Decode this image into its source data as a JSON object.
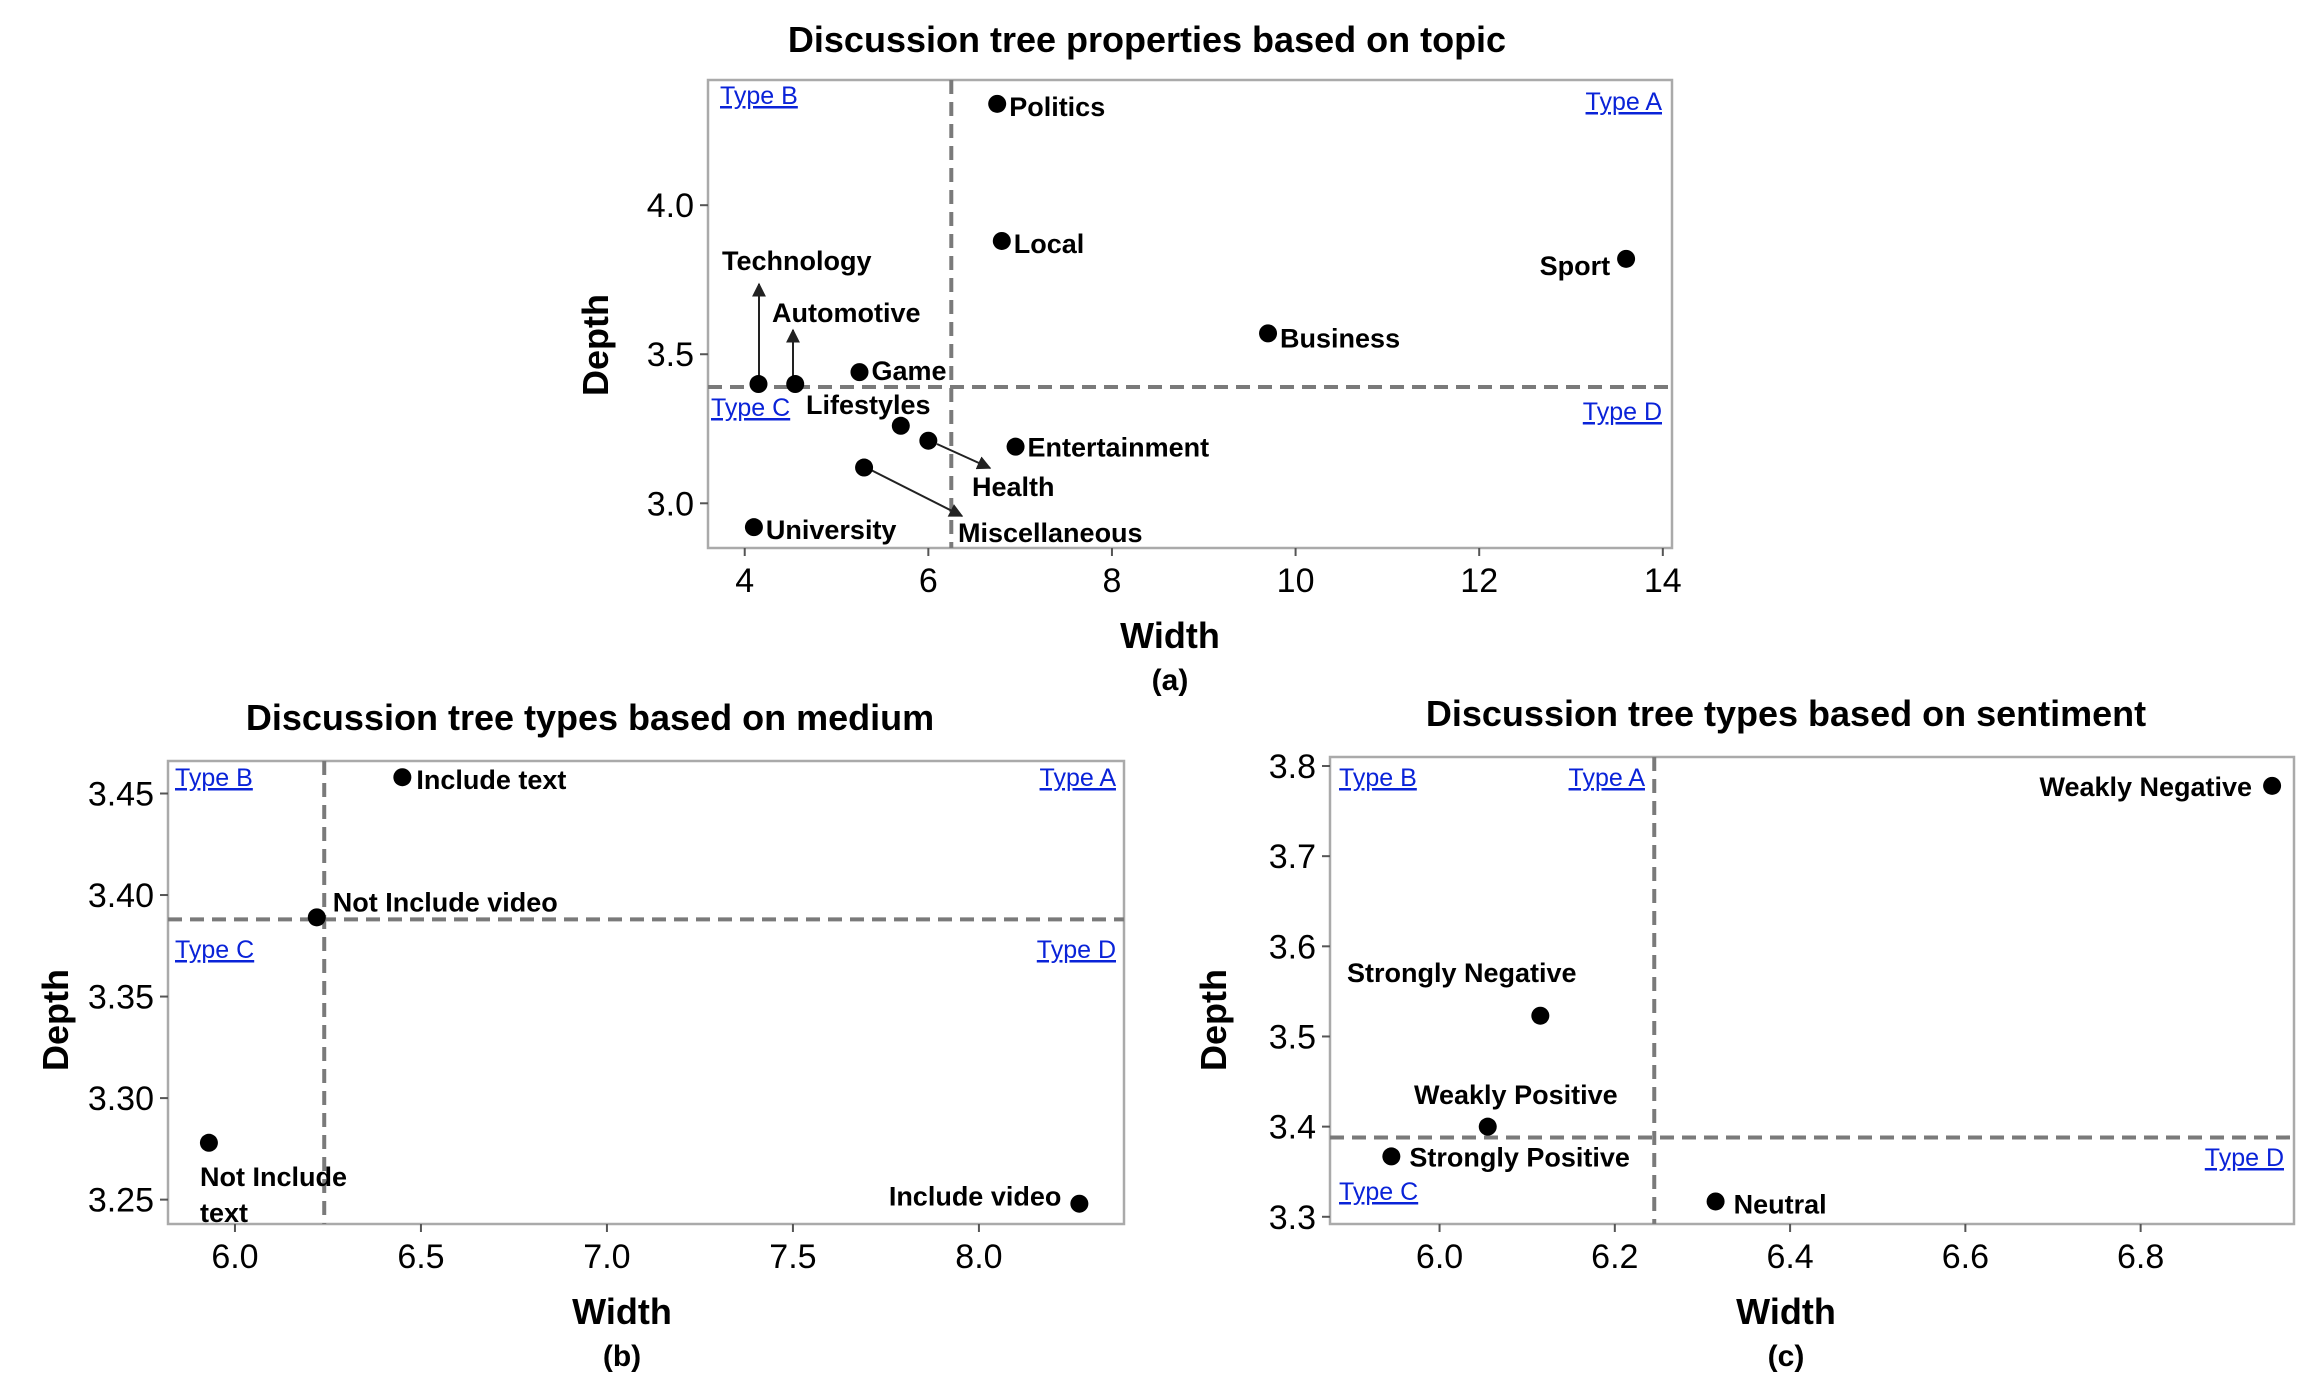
{
  "chart_data": [
    {
      "type": "scatter",
      "title": "Discussion tree properties based on topic",
      "xlabel": "Width",
      "ylabel": "Depth",
      "panel_label": "(a)",
      "xlim": [
        3.6,
        14.1
      ],
      "ylim": [
        2.85,
        4.42
      ],
      "xticks": [
        4,
        6,
        8,
        10,
        12,
        14
      ],
      "yticks": [
        3.0,
        3.5,
        4.0
      ],
      "xtick_labels": [
        "4",
        "6",
        "8",
        "10",
        "12",
        "14"
      ],
      "ytick_labels": [
        "3.0",
        "3.5",
        "4.0"
      ],
      "grid": false,
      "threshold_x": 6.25,
      "threshold_y": 3.39,
      "quadrant_labels": {
        "top_left": "Type B",
        "top_right": "Type A",
        "bottom_left": "Type C",
        "bottom_right": "Type D"
      },
      "points": [
        {
          "label": "Politics",
          "x": 6.75,
          "y": 4.34
        },
        {
          "label": "Local",
          "x": 6.8,
          "y": 3.88
        },
        {
          "label": "Sport",
          "x": 13.6,
          "y": 3.82
        },
        {
          "label": "Business",
          "x": 9.7,
          "y": 3.57
        },
        {
          "label": "Game",
          "x": 5.25,
          "y": 3.44
        },
        {
          "label": "Technology",
          "x": 4.15,
          "y": 3.4
        },
        {
          "label": "Automotive",
          "x": 4.55,
          "y": 3.4
        },
        {
          "label": "Lifestyles",
          "x": 5.7,
          "y": 3.26
        },
        {
          "label": "Health",
          "x": 6.0,
          "y": 3.21
        },
        {
          "label": "Entertainment",
          "x": 6.95,
          "y": 3.19
        },
        {
          "label": "Miscellaneous",
          "x": 5.3,
          "y": 3.12
        },
        {
          "label": "University",
          "x": 4.1,
          "y": 2.92
        }
      ]
    },
    {
      "type": "scatter",
      "title": "Discussion tree types based on medium",
      "xlabel": "Width",
      "ylabel": "Depth",
      "panel_label": "(b)",
      "xlim": [
        5.82,
        8.39
      ],
      "ylim": [
        3.238,
        3.466
      ],
      "xticks": [
        6.0,
        6.5,
        7.0,
        7.5,
        8.0
      ],
      "yticks": [
        3.25,
        3.3,
        3.35,
        3.4,
        3.45
      ],
      "xtick_labels": [
        "6.0",
        "6.5",
        "7.0",
        "7.5",
        "8.0"
      ],
      "ytick_labels": [
        "3.25",
        "3.30",
        "3.35",
        "3.40",
        "3.45"
      ],
      "grid": false,
      "threshold_x": 6.24,
      "threshold_y": 3.388,
      "quadrant_labels": {
        "top_left": "Type B",
        "top_right": "Type A",
        "bottom_left": "Type C",
        "bottom_right": "Type D"
      },
      "points": [
        {
          "label": "Include text",
          "x": 6.45,
          "y": 3.458
        },
        {
          "label": "Not Include video",
          "x": 6.22,
          "y": 3.389
        },
        {
          "label_lines": [
            "Not Include",
            "text"
          ],
          "x": 5.93,
          "y": 3.278
        },
        {
          "label": "Include video",
          "x": 8.27,
          "y": 3.248
        }
      ]
    },
    {
      "type": "scatter",
      "title": "Discussion tree types based on sentiment",
      "xlabel": "Width",
      "ylabel": "Depth",
      "panel_label": "(c)",
      "xlim": [
        5.875,
        6.975
      ],
      "ylim": [
        3.292,
        3.81
      ],
      "xticks": [
        6.0,
        6.2,
        6.4,
        6.6,
        6.8
      ],
      "yticks": [
        3.3,
        3.4,
        3.5,
        3.6,
        3.7,
        3.8
      ],
      "xtick_labels": [
        "6.0",
        "6.2",
        "6.4",
        "6.6",
        "6.8"
      ],
      "ytick_labels": [
        "3.3",
        "3.4",
        "3.5",
        "3.6",
        "3.7",
        "3.8"
      ],
      "grid": false,
      "threshold_x": 6.245,
      "threshold_y": 3.388,
      "quadrant_labels": {
        "top_left": "Type B",
        "top_right": "Type A",
        "bottom_left": "Type C",
        "bottom_right": "Type D"
      },
      "points": [
        {
          "label": "Weakly Negative",
          "x": 6.95,
          "y": 3.778
        },
        {
          "label": "Strongly Negative",
          "x": 6.115,
          "y": 3.523
        },
        {
          "label": "Weakly Positive",
          "x": 6.055,
          "y": 3.4
        },
        {
          "label": "Strongly Positive",
          "x": 5.945,
          "y": 3.367
        },
        {
          "label": "Neutral",
          "x": 6.315,
          "y": 3.317
        }
      ]
    }
  ]
}
